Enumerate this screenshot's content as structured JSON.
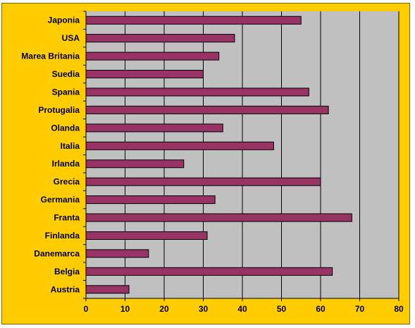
{
  "colors": {
    "frame_background": "#FFCC00",
    "plot_background": "#C0C0C0",
    "bar_fill": "#993366",
    "bar_stroke": "#000000",
    "gridline": "#000000",
    "text": "#000033"
  },
  "chart_data": {
    "type": "bar",
    "orientation": "horizontal",
    "title": "",
    "xlabel": "",
    "ylabel": "",
    "categories": [
      "Japonia",
      "USA",
      "Marea Britania",
      "Suedia",
      "Spania",
      "Protugalia",
      "Olanda",
      "Italia",
      "Irlanda",
      "Grecia",
      "Germania",
      "Franta",
      "Finlanda",
      "Danemarca",
      "Belgia",
      "Austria"
    ],
    "values": [
      55,
      38,
      34,
      30,
      57,
      62,
      35,
      48,
      25,
      60,
      33,
      68,
      31,
      16,
      63,
      11
    ],
    "xlim": [
      0,
      80
    ],
    "x_ticks": [
      "0",
      "10",
      "20",
      "30",
      "40",
      "50",
      "60",
      "70",
      "80"
    ],
    "grid": true,
    "legend": "none"
  }
}
